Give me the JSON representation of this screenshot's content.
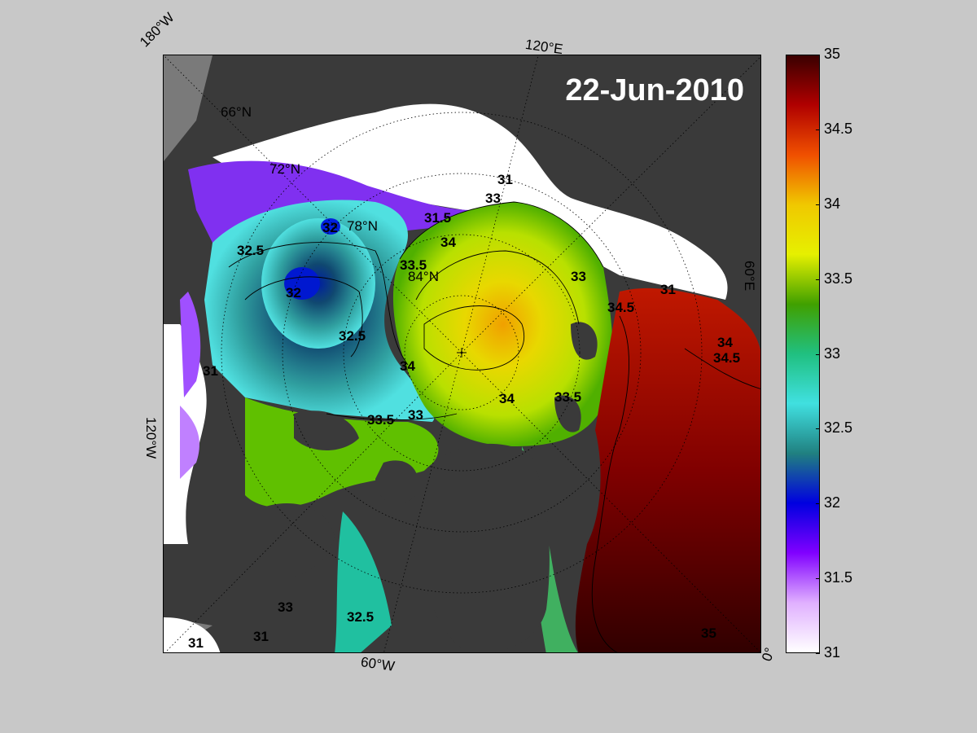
{
  "date": "22-Jun-2010",
  "edge_labels": {
    "lon_180w": "180°W",
    "lon_120e": "120°E",
    "lon_60e": "60°E",
    "lon_120w": "120°W",
    "lon_60w": "60°W",
    "lon_0": "0°"
  },
  "lat_labels": [
    "66°N",
    "72°N",
    "78°N",
    "84°N"
  ],
  "contour_labels": [
    "31",
    "31.5",
    "32",
    "32.5",
    "33",
    "33.5",
    "34",
    "34.5",
    "35"
  ],
  "colorbar": {
    "min": 31,
    "max": 35,
    "ticks": [
      "35",
      "34.5",
      "34",
      "33.5",
      "33",
      "32.5",
      "32",
      "31.5",
      "31"
    ],
    "colors": [
      "#3a0000",
      "#b00000",
      "#f05000",
      "#f0c800",
      "#e6f000",
      "#40a000",
      "#20c080",
      "#40e0e0",
      "#208080",
      "#0000e0",
      "#8000ff",
      "#e0b0ff",
      "#ffffff"
    ]
  },
  "colors": {
    "land": "#3a3a3a",
    "ice": "#ffffff",
    "background": "#c8c8c8"
  }
}
